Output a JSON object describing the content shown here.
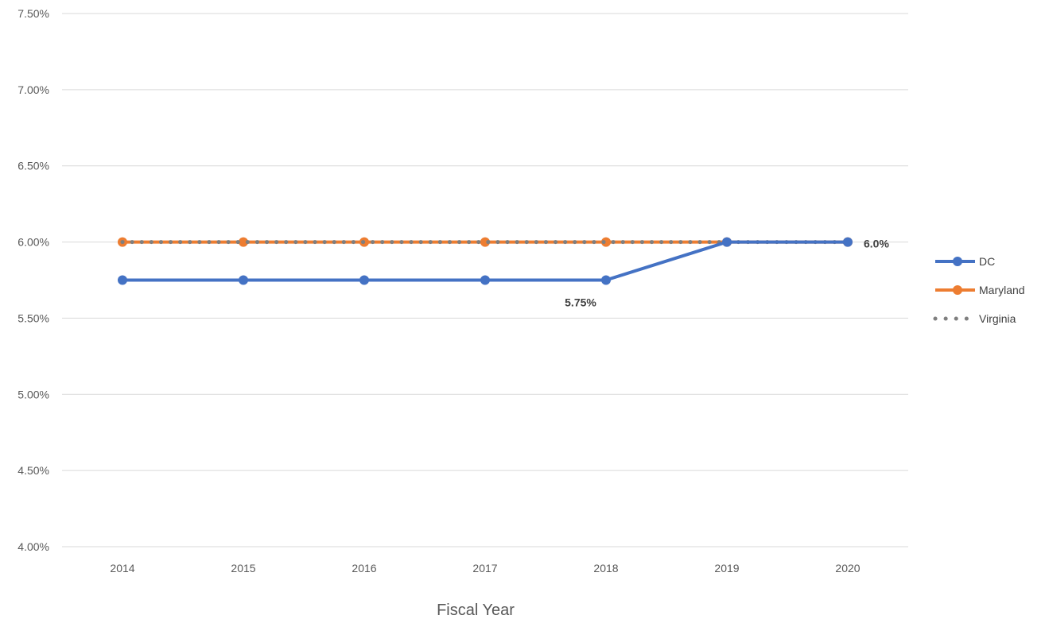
{
  "chart_data": {
    "type": "line",
    "title": "",
    "xlabel": "Fiscal Year",
    "ylabel": "",
    "categories": [
      "2014",
      "2015",
      "2016",
      "2017",
      "2018",
      "2019",
      "2020"
    ],
    "ylim": [
      0.04,
      0.075
    ],
    "y_ticks": [
      "4.00%",
      "4.50%",
      "5.00%",
      "5.50%",
      "6.00%",
      "6.50%",
      "7.00%",
      "7.50%"
    ],
    "grid": true,
    "legend_position": "right",
    "series": [
      {
        "name": "DC",
        "values": [
          0.0575,
          0.0575,
          0.0575,
          0.0575,
          0.0575,
          0.06,
          0.06
        ],
        "color": "#4472C4",
        "style": "solid-markers"
      },
      {
        "name": "Maryland",
        "values": [
          0.06,
          0.06,
          0.06,
          0.06,
          0.06,
          0.06,
          0.06
        ],
        "color": "#ED7D31",
        "style": "solid-markers"
      },
      {
        "name": "Virginia",
        "values": [
          0.06,
          0.06,
          0.06,
          0.06,
          0.06,
          0.06,
          0.06
        ],
        "color": "#7F7F7F",
        "style": "dotted"
      }
    ],
    "annotations": [
      {
        "text": "5.75%",
        "series": "DC",
        "category": "2018"
      },
      {
        "text": "6.0%",
        "series": "DC",
        "category": "2020"
      }
    ]
  }
}
